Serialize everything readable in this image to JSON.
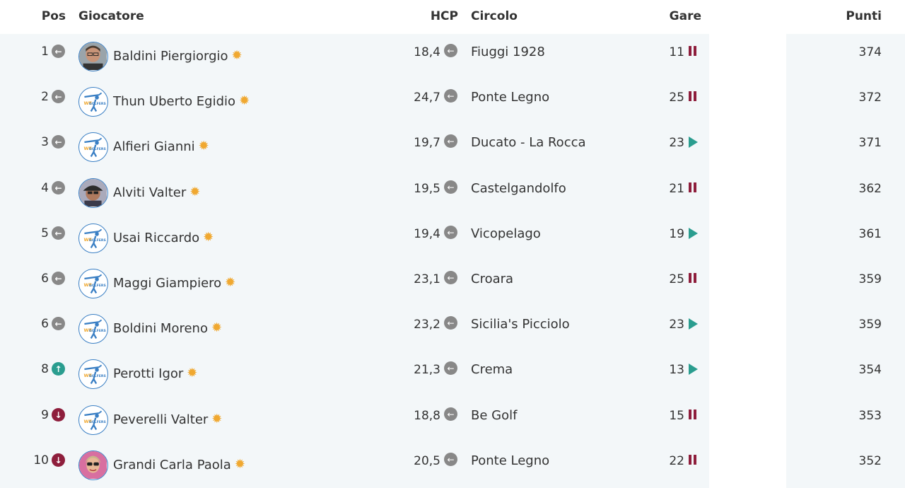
{
  "header": {
    "pos": "Pos",
    "player": "Giocatore",
    "hcp": "HCP",
    "club": "Circolo",
    "gare": "Gare",
    "points": "Punti"
  },
  "colors": {
    "band": "#f3f7f9",
    "same": "#888888",
    "up": "#2a9d8f",
    "down": "#8e1e3c",
    "star": "#f0a830"
  },
  "rows": [
    {
      "pos": "1",
      "trend": "same",
      "avatar": "photo-man",
      "name": "Baldini Piergiorgio",
      "hcp": "18,4",
      "club": "Fiuggi 1928",
      "gare": "11",
      "status": "paused",
      "points": "374"
    },
    {
      "pos": "2",
      "trend": "same",
      "avatar": "golfer-logo",
      "name": "Thun Uberto Egidio",
      "hcp": "24,7",
      "club": "Ponte Legno",
      "gare": "25",
      "status": "paused",
      "points": "372"
    },
    {
      "pos": "3",
      "trend": "same",
      "avatar": "golfer-logo",
      "name": "Alfieri Gianni",
      "hcp": "19,7",
      "club": "Ducato - La Rocca",
      "gare": "23",
      "status": "active",
      "points": "371"
    },
    {
      "pos": "4",
      "trend": "same",
      "avatar": "photo-cap",
      "name": "Alviti Valter",
      "hcp": "19,5",
      "club": "Castelgandolfo",
      "gare": "21",
      "status": "paused",
      "points": "362"
    },
    {
      "pos": "5",
      "trend": "same",
      "avatar": "golfer-logo",
      "name": "Usai Riccardo",
      "hcp": "19,4",
      "club": "Vicopelago",
      "gare": "19",
      "status": "active",
      "points": "361"
    },
    {
      "pos": "6",
      "trend": "same",
      "avatar": "golfer-logo",
      "name": "Maggi Giampiero",
      "hcp": "23,1",
      "club": "Croara",
      "gare": "25",
      "status": "paused",
      "points": "359"
    },
    {
      "pos": "6",
      "trend": "same",
      "avatar": "golfer-logo",
      "name": "Boldini Moreno",
      "hcp": "23,2",
      "club": "Sicilia's Picciolo",
      "gare": "23",
      "status": "active",
      "points": "359"
    },
    {
      "pos": "8",
      "trend": "up",
      "avatar": "golfer-logo",
      "name": "Perotti Igor",
      "hcp": "21,3",
      "club": "Crema",
      "gare": "13",
      "status": "active",
      "points": "354"
    },
    {
      "pos": "9",
      "trend": "down",
      "avatar": "golfer-logo",
      "name": "Peverelli Valter",
      "hcp": "18,8",
      "club": "Be Golf",
      "gare": "15",
      "status": "paused",
      "points": "353"
    },
    {
      "pos": "10",
      "trend": "down",
      "avatar": "photo-woman",
      "name": "Grandi Carla Paola",
      "hcp": "20,5",
      "club": "Ponte Legno",
      "gare": "22",
      "status": "paused",
      "points": "352"
    }
  ]
}
